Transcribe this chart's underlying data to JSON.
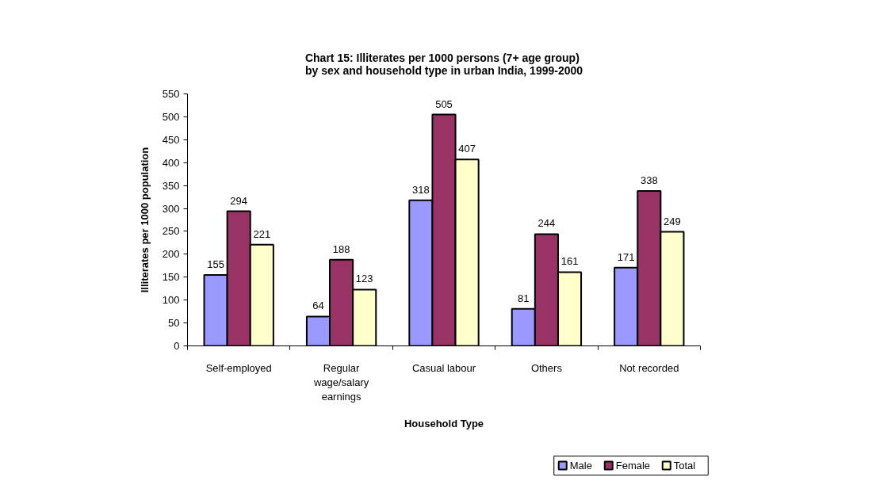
{
  "chart_data": {
    "type": "bar",
    "title": "Chart 15: Illiterates per 1000 persons (7+ age group)\nby sex and household type in urban India, 1999-2000",
    "xlabel": "Household Type",
    "ylabel": "Illiterates per 1000 population",
    "categories": [
      "Self-employed",
      "Regular wage/salary earnings",
      "Casual labour",
      "Others",
      "Not recorded"
    ],
    "series": [
      {
        "name": "Male",
        "color": "#9999ff",
        "values": [
          155,
          64,
          318,
          81,
          171
        ]
      },
      {
        "name": "Female",
        "color": "#993366",
        "values": [
          294,
          188,
          505,
          244,
          338
        ]
      },
      {
        "name": "Total",
        "color": "#ffffcc",
        "values": [
          221,
          123,
          407,
          161,
          249
        ]
      }
    ],
    "ylim": [
      0,
      550
    ],
    "yticks": [
      0,
      50,
      100,
      150,
      200,
      250,
      300,
      350,
      400,
      450,
      500,
      550
    ],
    "grid": false,
    "legend": "bottom",
    "data_labels": true
  }
}
